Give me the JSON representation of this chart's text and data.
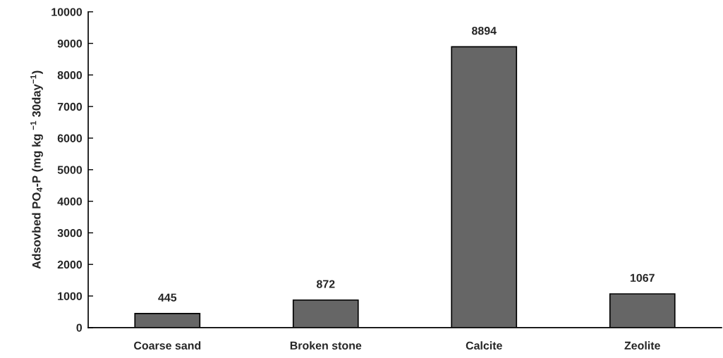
{
  "chart_data": {
    "type": "bar",
    "ylabel": "Adsovbed PO$_{4}$-P (mg kg $^{−1}$ 30day$^{−1}$)",
    "categories": [
      "Coarse sand",
      "Broken stone",
      "Calcite",
      "Zeolite"
    ],
    "values": [
      445,
      872,
      8894,
      1067
    ],
    "color": "#666666",
    "ylim": [
      0,
      10000
    ],
    "yticks": [
      0,
      1000,
      2000,
      3000,
      4000,
      5000,
      6000,
      7000,
      8000,
      9000,
      10000
    ],
    "data_labels": true,
    "grid": false,
    "legend": false
  }
}
